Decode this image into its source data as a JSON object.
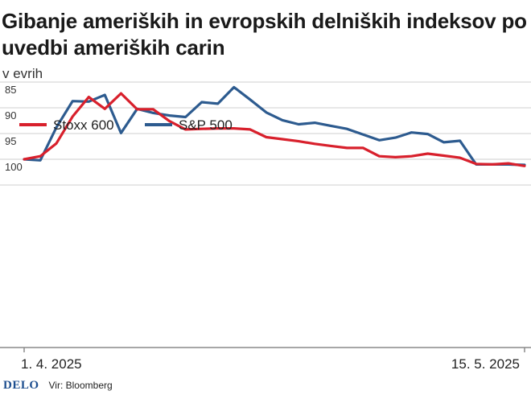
{
  "header": {
    "title": "Gibanje ameriških in evropskih delniških indeksov po uvedbi ameriških carin",
    "subtitle": "v evrih"
  },
  "footer": {
    "brand": "DELO",
    "source": "Vir: Bloomberg"
  },
  "colors": {
    "stoxx": "#d8202c",
    "sp500": "#2d5b8f",
    "grid": "#cfcfcf",
    "axis": "#8a8a8a"
  },
  "chart_data": {
    "type": "line",
    "title": "Gibanje ameriških in evropskih delniških indeksov po uvedbi ameriških carin",
    "subtitle": "v evrih",
    "xlabel": "",
    "ylabel": "",
    "ylim": [
      85,
      104
    ],
    "yticks": [
      85,
      90,
      95,
      100
    ],
    "ytick_labels": [
      "85",
      "90",
      "95",
      "100"
    ],
    "x_tick_labels": [
      "1. 4. 2025",
      "15. 5. 2025"
    ],
    "grid": true,
    "legend_position": "top-left",
    "series": [
      {
        "name": "Stoxx 600",
        "color": "#d8202c",
        "values": [
          100,
          99.4,
          96.9,
          91.7,
          87.9,
          90.2,
          87.2,
          90.3,
          90.3,
          92.6,
          94.2,
          94.1,
          94.0,
          94.0,
          94.2,
          95.7,
          96.1,
          96.5,
          97.0,
          97.4,
          97.8,
          97.8,
          99.4,
          99.6,
          99.4,
          98.9,
          99.3,
          99.7,
          100.9,
          101.0,
          100.8,
          101.3
        ]
      },
      {
        "name": "S&P 500",
        "color": "#2d5b8f",
        "values": [
          100,
          100.2,
          93.8,
          88.7,
          88.8,
          87.5,
          94.9,
          90.2,
          91.0,
          91.5,
          91.8,
          88.9,
          89.2,
          86.0,
          88.4,
          90.9,
          92.4,
          93.2,
          92.9,
          93.5,
          94.1,
          95.2,
          96.3,
          95.8,
          94.8,
          95.1,
          96.7,
          96.4,
          101.0,
          101.0,
          101.0,
          101.1
        ]
      }
    ]
  }
}
